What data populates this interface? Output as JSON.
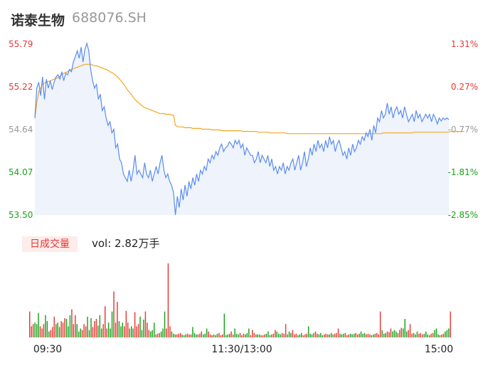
{
  "header": {
    "name": "诺泰生物",
    "code": "688076.SH"
  },
  "colors": {
    "up": "#e53935",
    "down": "#1aa11a",
    "neutral": "#999999",
    "price": "#5b8def",
    "avg": "#f5a623",
    "area": "#eef3fc"
  },
  "chart_data": {
    "type": "line",
    "y_ticks_left": [
      "55.79",
      "55.22",
      "54.64",
      "54.07",
      "53.50"
    ],
    "y_ticks_right": [
      "1.31%",
      "0.27%",
      "-0.77%",
      "-1.81%",
      "-2.85%"
    ],
    "y_tick_colors": [
      "#e53935",
      "#e53935",
      "#999999",
      "#1aa11a",
      "#1aa11a"
    ],
    "ylim": [
      53.5,
      55.79
    ],
    "x_ticks": [
      "09:30",
      "11:30/13:00",
      "15:00"
    ],
    "series": [
      {
        "values": [
          54.8,
          55.2,
          55.28,
          55.1,
          55.35,
          55.05,
          55.32,
          55.2,
          55.3,
          55.18,
          55.28,
          55.35,
          55.38,
          55.32,
          55.42,
          55.3,
          55.4,
          55.38,
          55.45,
          55.42,
          55.55,
          55.62,
          55.7,
          55.6,
          55.75,
          55.55,
          55.72,
          55.8,
          55.7,
          55.45,
          55.3,
          55.2,
          55.25,
          55.05,
          55.12,
          54.9,
          54.95,
          54.8,
          54.7,
          54.75,
          54.6,
          54.65,
          54.4,
          54.45,
          54.25,
          54.2,
          54.05,
          54.0,
          53.95,
          54.1,
          53.95,
          54.1,
          54.3,
          54.05,
          54.1,
          54.05,
          54.0,
          54.2,
          54.05,
          54.0,
          54.1,
          53.95,
          54.05,
          54.15,
          54.05,
          54.2,
          54.3,
          54.1,
          54.0,
          54.05,
          53.95,
          53.9,
          53.8,
          53.5,
          53.75,
          53.6,
          53.85,
          53.7,
          53.9,
          53.75,
          53.95,
          53.85,
          54.0,
          53.9,
          54.05,
          53.95,
          54.1,
          54.05,
          54.15,
          54.1,
          54.25,
          54.2,
          54.3,
          54.25,
          54.35,
          54.3,
          54.4,
          54.45,
          54.35,
          54.4,
          54.42,
          54.48,
          54.45,
          54.4,
          54.5,
          54.45,
          54.5,
          54.4,
          54.45,
          54.3,
          54.4,
          54.35,
          54.3,
          54.3,
          54.2,
          54.25,
          54.35,
          54.2,
          54.3,
          54.25,
          54.2,
          54.3,
          54.15,
          54.25,
          54.1,
          54.15,
          54.05,
          54.15,
          54.1,
          54.2,
          54.05,
          54.15,
          54.1,
          54.2,
          54.25,
          54.1,
          54.2,
          54.3,
          54.1,
          54.2,
          54.35,
          54.15,
          54.25,
          54.4,
          54.3,
          54.45,
          54.35,
          54.5,
          54.4,
          54.45,
          54.35,
          54.5,
          54.4,
          54.55,
          54.45,
          54.5,
          54.35,
          54.45,
          54.5,
          54.4,
          54.3,
          54.35,
          54.25,
          54.4,
          54.3,
          54.45,
          54.35,
          54.4,
          54.5,
          54.45,
          54.55,
          54.5,
          54.6,
          54.55,
          54.65,
          54.5,
          54.7,
          54.6,
          54.8,
          54.75,
          54.9,
          54.8,
          54.85,
          55.0,
          54.85,
          54.95,
          54.8,
          54.9,
          54.95,
          54.85,
          54.9,
          54.8,
          54.95,
          54.85,
          54.75,
          54.8,
          54.85,
          54.75,
          54.9,
          54.8,
          54.85,
          54.75,
          54.8,
          54.85,
          54.8,
          54.85,
          54.75,
          54.85,
          54.8,
          54.72,
          54.8,
          54.76,
          54.8,
          54.78,
          54.8,
          54.78
        ]
      },
      {
        "values": [
          54.8,
          55.0,
          55.15,
          55.2,
          55.25,
          55.27,
          55.28,
          55.29,
          55.3,
          55.31,
          55.32,
          55.33,
          55.34,
          55.36,
          55.38,
          55.4,
          55.41,
          55.42,
          55.44,
          55.45,
          55.46,
          55.47,
          55.48,
          55.49,
          55.5,
          55.51,
          55.52,
          55.52,
          55.52,
          55.52,
          55.51,
          55.5,
          55.5,
          55.49,
          55.48,
          55.47,
          55.46,
          55.45,
          55.44,
          55.42,
          55.41,
          55.39,
          55.37,
          55.35,
          55.32,
          55.29,
          55.26,
          55.22,
          55.18,
          55.15,
          55.12,
          55.08,
          55.05,
          55.02,
          55.0,
          54.98,
          54.96,
          54.94,
          54.93,
          54.92,
          54.91,
          54.9,
          54.89,
          54.88,
          54.87,
          54.86,
          54.86,
          54.86,
          54.85,
          54.85,
          54.85,
          54.84,
          54.84,
          54.7,
          54.69,
          54.68,
          54.68,
          54.68,
          54.67,
          54.67,
          54.67,
          54.67,
          54.66,
          54.66,
          54.66,
          54.66,
          54.66,
          54.65,
          54.65,
          54.65,
          54.65,
          54.65,
          54.64,
          54.64,
          54.64,
          54.64,
          54.64,
          54.63,
          54.63,
          54.63,
          54.63,
          54.63,
          54.63,
          54.63,
          54.63,
          54.63,
          54.63,
          54.63,
          54.62,
          54.62,
          54.62,
          54.62,
          54.62,
          54.62,
          54.62,
          54.62,
          54.61,
          54.61,
          54.61,
          54.61,
          54.61,
          54.61,
          54.6,
          54.6,
          54.6,
          54.6,
          54.6,
          54.6,
          54.6,
          54.6,
          54.6,
          54.59,
          54.59,
          54.59,
          54.59,
          54.59,
          54.59,
          54.59,
          54.59,
          54.59,
          54.59,
          54.59,
          54.59,
          54.59,
          54.59,
          54.59,
          54.59,
          54.59,
          54.59,
          54.59,
          54.59,
          54.59,
          54.59,
          54.59,
          54.59,
          54.59,
          54.59,
          54.59,
          54.59,
          54.59,
          54.59,
          54.59,
          54.59,
          54.59,
          54.59,
          54.59,
          54.59,
          54.59,
          54.59,
          54.59,
          54.59,
          54.59,
          54.59,
          54.59,
          54.59,
          54.59,
          54.59,
          54.59,
          54.59,
          54.59,
          54.59,
          54.6,
          54.6,
          54.6,
          54.6,
          54.6,
          54.6,
          54.6,
          54.6,
          54.6,
          54.6,
          54.6,
          54.6,
          54.6,
          54.6,
          54.6,
          54.6,
          54.61,
          54.61,
          54.61,
          54.61,
          54.61,
          54.61,
          54.61,
          54.61,
          54.61,
          54.61,
          54.61,
          54.61,
          54.61,
          54.61,
          54.61,
          54.61,
          54.61,
          54.61,
          54.61,
          54.62,
          54.62,
          54.62,
          54.62,
          54.62,
          54.62,
          54.62,
          54.62
        ]
      }
    ],
    "volume": {
      "label": "日成交量",
      "summary": "vol: 2.82万手",
      "values": [
        0.35,
        0.15,
        0.18,
        0.2,
        0.18,
        0.33,
        0.15,
        0.12,
        0.18,
        0.3,
        0.22,
        0.08,
        0.1,
        0.14,
        0.28,
        0.18,
        0.2,
        0.14,
        0.22,
        0.2,
        0.26,
        0.25,
        0.15,
        0.3,
        0.38,
        0.18,
        0.3,
        0.18,
        0.08,
        0.12,
        0.1,
        0.18,
        0.15,
        0.28,
        0.1,
        0.26,
        0.14,
        0.22,
        0.25,
        0.16,
        0.3,
        0.12,
        0.18,
        0.42,
        0.12,
        0.2,
        0.12,
        0.35,
        0.62,
        0.2,
        0.48,
        0.22,
        0.15,
        0.2,
        0.15,
        0.36,
        0.2,
        0.12,
        0.15,
        0.12,
        0.34,
        0.15,
        0.18,
        0.28,
        0.1,
        0.24,
        0.35,
        0.2,
        0.1,
        0.08,
        0.1,
        0.2,
        0.04,
        0.05,
        0.06,
        0.08,
        0.12,
        0.35,
        0.12,
        1.0,
        0.15,
        0.08,
        0.05,
        0.04,
        0.04,
        0.05,
        0.06,
        0.04,
        0.03,
        0.04,
        0.05,
        0.04,
        0.04,
        0.14,
        0.06,
        0.04,
        0.04,
        0.05,
        0.08,
        0.04,
        0.05,
        0.12,
        0.08,
        0.04,
        0.03,
        0.04,
        0.03,
        0.05,
        0.06,
        0.03,
        0.04,
        0.32,
        0.03,
        0.04,
        0.05,
        0.08,
        0.04,
        0.12,
        0.05,
        0.04,
        0.06,
        0.03,
        0.05,
        0.04,
        0.06,
        0.12,
        0.03,
        0.1,
        0.06,
        0.04,
        0.04,
        0.04,
        0.03,
        0.03,
        0.04,
        0.05,
        0.08,
        0.03,
        0.04,
        0.05,
        0.1,
        0.08,
        0.05,
        0.04,
        0.06,
        0.05,
        0.18,
        0.04,
        0.08,
        0.06,
        0.1,
        0.04,
        0.05,
        0.03,
        0.04,
        0.06,
        0.03,
        0.04,
        0.05,
        0.15,
        0.05,
        0.04,
        0.06,
        0.08,
        0.05,
        0.04,
        0.06,
        0.03,
        0.04,
        0.05,
        0.04,
        0.04,
        0.06,
        0.04,
        0.05,
        0.06,
        0.12,
        0.05,
        0.04,
        0.05,
        0.06,
        0.03,
        0.04,
        0.05,
        0.04,
        0.05,
        0.06,
        0.04,
        0.05,
        0.08,
        0.05,
        0.06,
        0.04,
        0.05,
        0.04,
        0.03,
        0.04,
        0.05,
        0.06,
        0.04,
        0.35,
        0.1,
        0.05,
        0.06,
        0.08,
        0.07,
        0.12,
        0.08,
        0.1,
        0.08,
        0.06,
        0.1,
        0.13,
        0.12,
        0.25,
        0.08,
        0.1,
        0.18,
        0.05,
        0.06,
        0.04,
        0.08,
        0.05,
        0.06,
        0.04,
        0.05,
        0.08,
        0.04,
        0.03,
        0.05,
        0.06,
        0.1,
        0.12,
        0.04,
        0.03,
        0.04,
        0.05,
        0.08,
        0.1,
        0.12,
        0.35
      ]
    }
  }
}
